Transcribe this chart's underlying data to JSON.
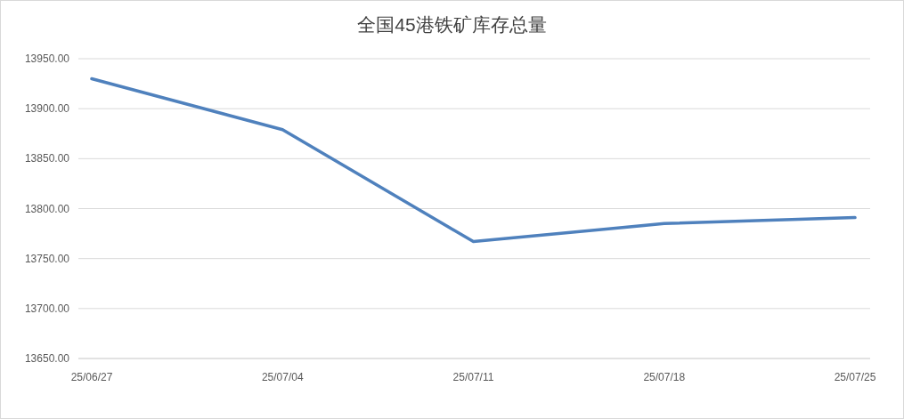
{
  "chart_data": {
    "type": "line",
    "title": "全国45港铁矿库存总量",
    "categories": [
      "25/06/27",
      "25/07/04",
      "25/07/11",
      "25/07/18",
      "25/07/25"
    ],
    "series": [
      {
        "color": "#4f81bd",
        "values": [
          13930,
          13879,
          13767,
          13785,
          13791
        ]
      }
    ],
    "ylim": [
      13650,
      13950
    ],
    "yticks": [
      {
        "value": 13650,
        "label": "13650.00"
      },
      {
        "value": 13700,
        "label": "13700.00"
      },
      {
        "value": 13750,
        "label": "13750.00"
      },
      {
        "value": 13800,
        "label": "13800.00"
      },
      {
        "value": 13850,
        "label": "13850.00"
      },
      {
        "value": 13900,
        "label": "13900.00"
      },
      {
        "value": 13950,
        "label": "13950.00"
      }
    ],
    "grid": "y",
    "marker": "none",
    "line_style": "solid"
  }
}
